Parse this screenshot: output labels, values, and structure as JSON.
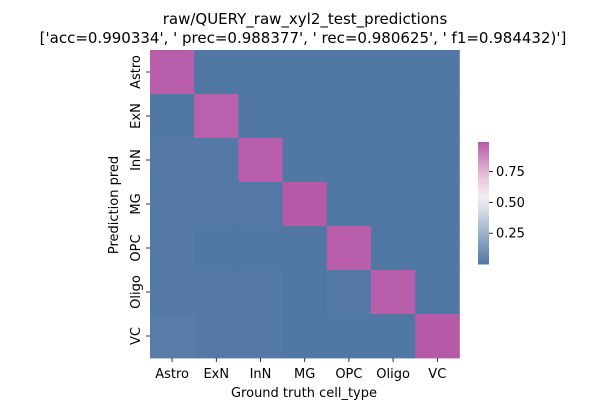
{
  "chart_data": {
    "type": "heatmap",
    "title": "raw/QUERY_raw_xyl2_test_predictions",
    "subtitle": "['acc=0.990334', '  prec=0.988377', ' rec=0.980625', ' f1=0.984432)']",
    "xlabel": "Ground truth cell_type",
    "ylabel": "Prediction pred",
    "x_categories": [
      "Astro",
      "ExN",
      "InN",
      "MG",
      "OPC",
      "Oligo",
      "VC"
    ],
    "y_categories": [
      "Astro",
      "ExN",
      "InN",
      "MG",
      "OPC",
      "Oligo",
      "VC"
    ],
    "values": [
      [
        0.98,
        0.0,
        0.0,
        0.0,
        0.0,
        0.0,
        0.0
      ],
      [
        0.0,
        0.97,
        0.0,
        0.0,
        0.0,
        0.0,
        0.0
      ],
      [
        0.01,
        0.01,
        0.98,
        0.0,
        0.0,
        0.0,
        0.0
      ],
      [
        0.01,
        0.01,
        0.01,
        0.99,
        0.0,
        0.0,
        0.0
      ],
      [
        0.01,
        0.0,
        0.0,
        0.0,
        0.98,
        0.0,
        0.0
      ],
      [
        0.01,
        0.01,
        0.01,
        0.0,
        0.01,
        0.98,
        0.0
      ],
      [
        0.02,
        0.01,
        0.01,
        0.0,
        0.0,
        0.0,
        0.99
      ]
    ],
    "colorbar": {
      "ticks": [
        0.25,
        0.5,
        0.75
      ],
      "tick_labels": [
        "0.25",
        "0.50",
        "0.75"
      ],
      "vmin": 0.0,
      "vmax": 0.99
    },
    "colormap": [
      "#5177a4",
      "#d9dee7",
      "#f2eef1",
      "#e9c9de",
      "#b65aa8"
    ],
    "grid": false,
    "legend": "colorbar-right"
  }
}
